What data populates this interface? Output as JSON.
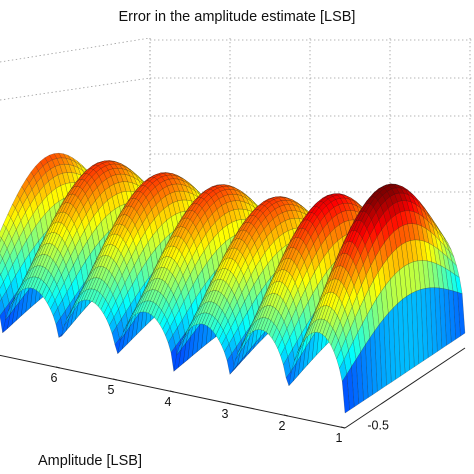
{
  "chart_data": {
    "type": "surface",
    "title": "Error in the amplitude estimate [LSB]",
    "xlabel": "Amplitude [LSB]",
    "ylabel": "",
    "zlabel": "",
    "x_ticks": [
      1,
      2,
      3,
      4,
      5,
      6
    ],
    "y_ticks": [
      -0.5
    ],
    "x_range": [
      1,
      6.5
    ],
    "y_range": [
      -0.5,
      0.5
    ],
    "grid": true,
    "colormap": "jet",
    "description_series": [
      {
        "name": "",
        "ridges_per_LSB": 1
      }
    ]
  }
}
